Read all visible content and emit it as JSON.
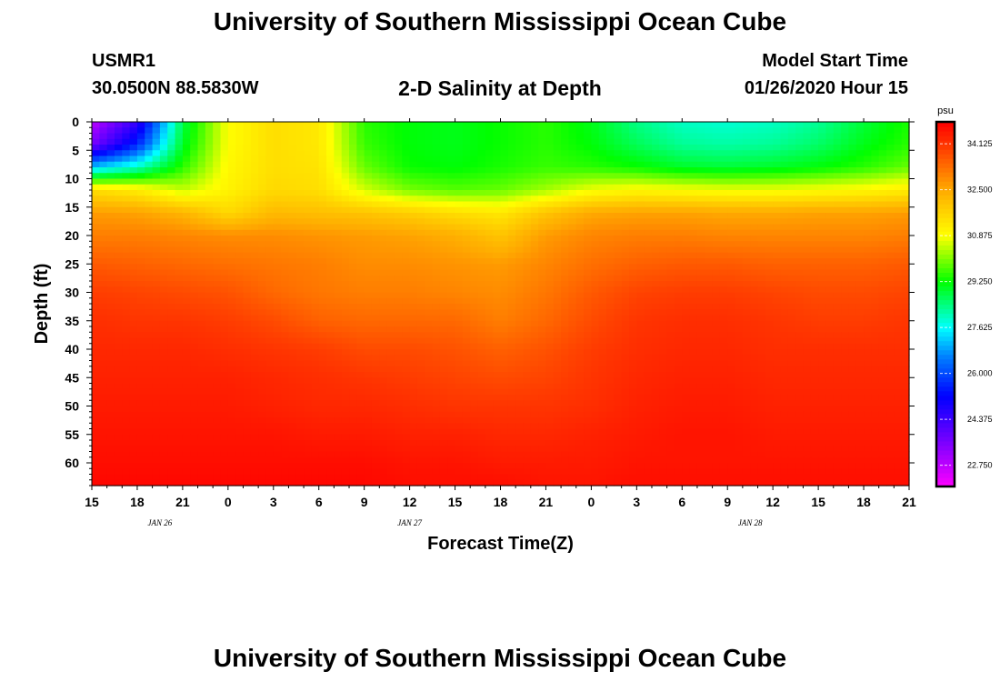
{
  "header": {
    "title": "University of Southern Mississippi Ocean Cube",
    "station_id": "USMR1",
    "coords": "30.0500N 88.5830W",
    "plot_title": "2-D Salinity at Depth",
    "model_start_label": "Model Start Time",
    "model_start_value": "01/26/2020 Hour 15"
  },
  "footer": {
    "title": "University of Southern Mississippi Ocean Cube"
  },
  "chart_data": {
    "type": "heatmap",
    "title": "2-D Salinity at Depth",
    "xlabel": "Forecast Time(Z)",
    "ylabel": "Depth (ft)",
    "x_tick_labels": [
      "15",
      "18",
      "21",
      "0",
      "3",
      "6",
      "9",
      "12",
      "15",
      "18",
      "21",
      "0",
      "3",
      "6",
      "9",
      "12",
      "15",
      "18",
      "21"
    ],
    "x_hours": [
      0,
      3,
      6,
      9,
      12,
      15,
      18,
      21,
      24,
      27,
      30,
      33,
      36,
      39,
      42,
      45,
      48,
      51,
      54
    ],
    "xlim_hours": [
      0,
      54
    ],
    "date_labels": [
      {
        "text": "JAN  26",
        "hour": 4.5
      },
      {
        "text": "JAN  27",
        "hour": 21
      },
      {
        "text": "JAN  28",
        "hour": 43.5
      }
    ],
    "y_ticks": [
      0,
      5,
      10,
      15,
      20,
      25,
      30,
      35,
      40,
      45,
      50,
      55,
      60
    ],
    "ylim": [
      0,
      64
    ],
    "y_inverted": true,
    "colorbar": {
      "unit": "psu",
      "min": 22.0,
      "max": 34.9,
      "tick_values": [
        22.75,
        24.375,
        26.0,
        27.625,
        29.25,
        30.875,
        32.5,
        34.125
      ],
      "tick_labels": [
        "22.750",
        "24.375",
        "26.000",
        "27.625",
        "29.250",
        "30.875",
        "32.500",
        "34.125"
      ],
      "color_stops": [
        {
          "value": 22.0,
          "color": "#ff00ff"
        },
        {
          "value": 23.5,
          "color": "#8000ff"
        },
        {
          "value": 25.2,
          "color": "#0000ff"
        },
        {
          "value": 26.6,
          "color": "#0080ff"
        },
        {
          "value": 27.625,
          "color": "#00ffff"
        },
        {
          "value": 29.25,
          "color": "#00ff00"
        },
        {
          "value": 30.875,
          "color": "#ffff00"
        },
        {
          "value": 32.5,
          "color": "#ffaa00"
        },
        {
          "value": 34.125,
          "color": "#ff3300"
        },
        {
          "value": 34.9,
          "color": "#ff0000"
        }
      ]
    },
    "grid_hours": [
      0,
      3,
      6,
      9,
      12,
      15,
      18,
      21,
      24,
      27,
      30,
      33,
      36,
      39,
      42,
      45,
      48,
      51,
      54
    ],
    "grid_depths": [
      0,
      4,
      8,
      12,
      16,
      20,
      25,
      30,
      35,
      40,
      45,
      50,
      55,
      60,
      64
    ],
    "salinity": [
      [
        22.8,
        24.5,
        28.8,
        30.9,
        31.5,
        31.3,
        29.5,
        29.2,
        29.1,
        29.3,
        29.5,
        29.1,
        28.4,
        28.0,
        27.9,
        28.0,
        28.3,
        28.9,
        29.4
      ],
      [
        23.6,
        25.6,
        29.0,
        30.9,
        31.5,
        31.3,
        29.6,
        29.2,
        29.1,
        29.3,
        29.5,
        29.2,
        28.7,
        28.3,
        28.2,
        28.3,
        28.6,
        29.1,
        29.5
      ],
      [
        27.2,
        28.0,
        29.5,
        31.0,
        31.5,
        31.4,
        29.9,
        29.3,
        29.2,
        29.4,
        29.6,
        29.5,
        29.3,
        29.0,
        28.9,
        29.0,
        29.2,
        29.5,
        29.9
      ],
      [
        31.5,
        31.2,
        30.5,
        31.1,
        31.6,
        31.5,
        30.6,
        30.0,
        29.8,
        29.9,
        30.3,
        30.8,
        31.0,
        30.9,
        30.8,
        30.8,
        30.9,
        31.0,
        31.2
      ],
      [
        32.7,
        32.6,
        32.3,
        31.6,
        32.2,
        32.1,
        32.0,
        31.8,
        31.5,
        31.3,
        32.0,
        32.5,
        32.6,
        32.6,
        32.5,
        32.5,
        32.6,
        32.6,
        32.7
      ],
      [
        33.1,
        33.1,
        33.0,
        32.9,
        32.9,
        32.8,
        32.7,
        32.6,
        32.4,
        32.0,
        32.7,
        33.0,
        33.1,
        33.1,
        33.0,
        33.0,
        33.0,
        33.0,
        33.1
      ],
      [
        33.6,
        33.5,
        33.4,
        33.3,
        33.2,
        33.1,
        32.9,
        32.9,
        32.8,
        32.7,
        33.0,
        33.3,
        33.5,
        33.6,
        33.6,
        33.5,
        33.5,
        33.5,
        33.6
      ],
      [
        34.0,
        33.9,
        33.8,
        33.7,
        33.4,
        33.2,
        33.1,
        33.1,
        33.0,
        32.9,
        33.2,
        33.6,
        33.9,
        34.0,
        34.0,
        33.9,
        33.8,
        33.8,
        33.9
      ],
      [
        34.2,
        34.1,
        34.1,
        34.0,
        33.8,
        33.5,
        33.4,
        33.4,
        33.4,
        33.1,
        33.4,
        33.8,
        34.1,
        34.2,
        34.2,
        34.1,
        34.0,
        34.0,
        34.1
      ],
      [
        34.3,
        34.3,
        34.3,
        34.2,
        34.1,
        34.0,
        33.8,
        33.8,
        33.7,
        33.5,
        33.7,
        34.0,
        34.2,
        34.3,
        34.3,
        34.2,
        34.2,
        34.2,
        34.2
      ],
      [
        34.4,
        34.4,
        34.4,
        34.4,
        34.3,
        34.2,
        34.1,
        34.0,
        33.9,
        33.8,
        33.9,
        34.1,
        34.3,
        34.4,
        34.4,
        34.3,
        34.3,
        34.3,
        34.3
      ],
      [
        34.5,
        34.5,
        34.5,
        34.5,
        34.4,
        34.3,
        34.3,
        34.2,
        34.1,
        34.1,
        34.1,
        34.2,
        34.4,
        34.5,
        34.5,
        34.4,
        34.4,
        34.4,
        34.4
      ],
      [
        34.6,
        34.6,
        34.6,
        34.6,
        34.6,
        34.5,
        34.5,
        34.4,
        34.4,
        34.3,
        34.3,
        34.4,
        34.5,
        34.6,
        34.6,
        34.5,
        34.5,
        34.5,
        34.5
      ],
      [
        34.7,
        34.7,
        34.7,
        34.7,
        34.7,
        34.7,
        34.7,
        34.6,
        34.6,
        34.5,
        34.5,
        34.5,
        34.6,
        34.6,
        34.6,
        34.6,
        34.6,
        34.6,
        34.6
      ],
      [
        34.8,
        34.8,
        34.8,
        34.8,
        34.8,
        34.8,
        34.8,
        34.7,
        34.7,
        34.7,
        34.6,
        34.6,
        34.7,
        34.7,
        34.7,
        34.7,
        34.7,
        34.7,
        34.7
      ]
    ]
  }
}
